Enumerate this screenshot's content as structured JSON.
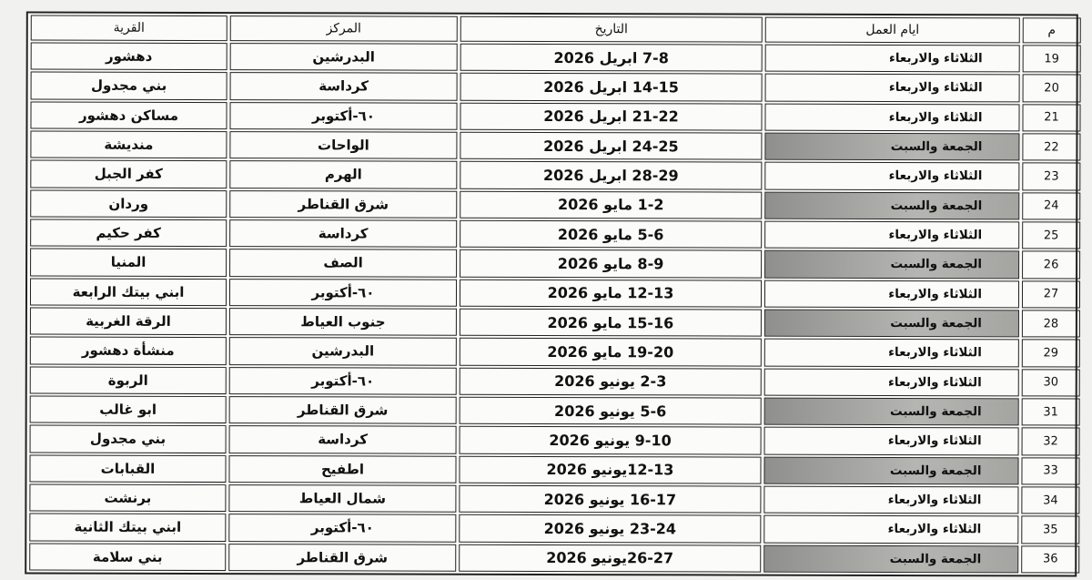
{
  "headers": {
    "num": "م",
    "days": "ايام العمل",
    "date": "التاريخ",
    "center": "المركز",
    "village": "القرية"
  },
  "colors": {
    "shaded_cell": "#a4a4a1",
    "border": "#222222"
  },
  "rows": [
    {
      "num": "19",
      "days": "الثلاثاء والاربعاء",
      "shaded": false,
      "date": "7-8 ابريل 2026",
      "center": "البدرشين",
      "village": "دهشور"
    },
    {
      "num": "20",
      "days": "الثلاثاء والاربعاء",
      "shaded": false,
      "date": "14-15 ابريل 2026",
      "center": "كرداسة",
      "village": "بني مجدول"
    },
    {
      "num": "21",
      "days": "الثلاثاء والاربعاء",
      "shaded": false,
      "date": "21-22 ابريل 2026",
      "center": "٦٠-أكتوبر",
      "village": "مساكن دهشور"
    },
    {
      "num": "22",
      "days": "الجمعة والسبت",
      "shaded": true,
      "date": "24-25 ابريل 2026",
      "center": "الواحات",
      "village": "منديشة"
    },
    {
      "num": "23",
      "days": "الثلاثاء والاربعاء",
      "shaded": false,
      "date": "28-29 ابريل 2026",
      "center": "الهرم",
      "village": "كفر الجبل"
    },
    {
      "num": "24",
      "days": "الجمعة والسبت",
      "shaded": true,
      "date": "1-2 مايو 2026",
      "center": "شرق القناطر",
      "village": "وردان"
    },
    {
      "num": "25",
      "days": "الثلاثاء والاربعاء",
      "shaded": false,
      "date": "5-6 مايو 2026",
      "center": "كرداسة",
      "village": "كفر حكيم"
    },
    {
      "num": "26",
      "days": "الجمعة والسبت",
      "shaded": true,
      "date": "8-9 مايو 2026",
      "center": "الصف",
      "village": "المنيا"
    },
    {
      "num": "27",
      "days": "الثلاثاء والاربعاء",
      "shaded": false,
      "date": "12-13 مايو 2026",
      "center": "٦٠-أكتوبر",
      "village": "ابني بيتك الرابعة"
    },
    {
      "num": "28",
      "days": "الجمعة والسبت",
      "shaded": true,
      "date": "15-16 مايو 2026",
      "center": "جنوب العياط",
      "village": "الرقة الغربية"
    },
    {
      "num": "29",
      "days": "الثلاثاء والاربعاء",
      "shaded": false,
      "date": "19-20 مايو 2026",
      "center": "البدرشين",
      "village": "منشأة دهشور"
    },
    {
      "num": "30",
      "days": "الثلاثاء والاربعاء",
      "shaded": false,
      "date": "2-3 يونيو 2026",
      "center": "٦٠-أكتوبر",
      "village": "الربوة"
    },
    {
      "num": "31",
      "days": "الجمعة والسبت",
      "shaded": true,
      "date": "5-6 يونيو 2026",
      "center": "شرق القناطر",
      "village": "ابو غالب"
    },
    {
      "num": "32",
      "days": "الثلاثاء والاربعاء",
      "shaded": false,
      "date": "9-10 يونيو 2026",
      "center": "كرداسة",
      "village": "بني مجدول"
    },
    {
      "num": "33",
      "days": "الجمعة والسبت",
      "shaded": true,
      "date": "12-13يونيو 2026",
      "center": "اطفيح",
      "village": "القبابات"
    },
    {
      "num": "34",
      "days": "الثلاثاء والاربعاء",
      "shaded": false,
      "date": "16-17 يونيو 2026",
      "center": "شمال العياط",
      "village": "برنشت"
    },
    {
      "num": "35",
      "days": "الثلاثاء والاربعاء",
      "shaded": false,
      "date": "23-24 يونيو 2026",
      "center": "٦٠-أكتوبر",
      "village": "ابني بيتك الثانية"
    },
    {
      "num": "36",
      "days": "الجمعة والسبت",
      "shaded": true,
      "date": "26-27يونيو 2026",
      "center": "شرق القناطر",
      "village": "بني سلامة"
    }
  ]
}
